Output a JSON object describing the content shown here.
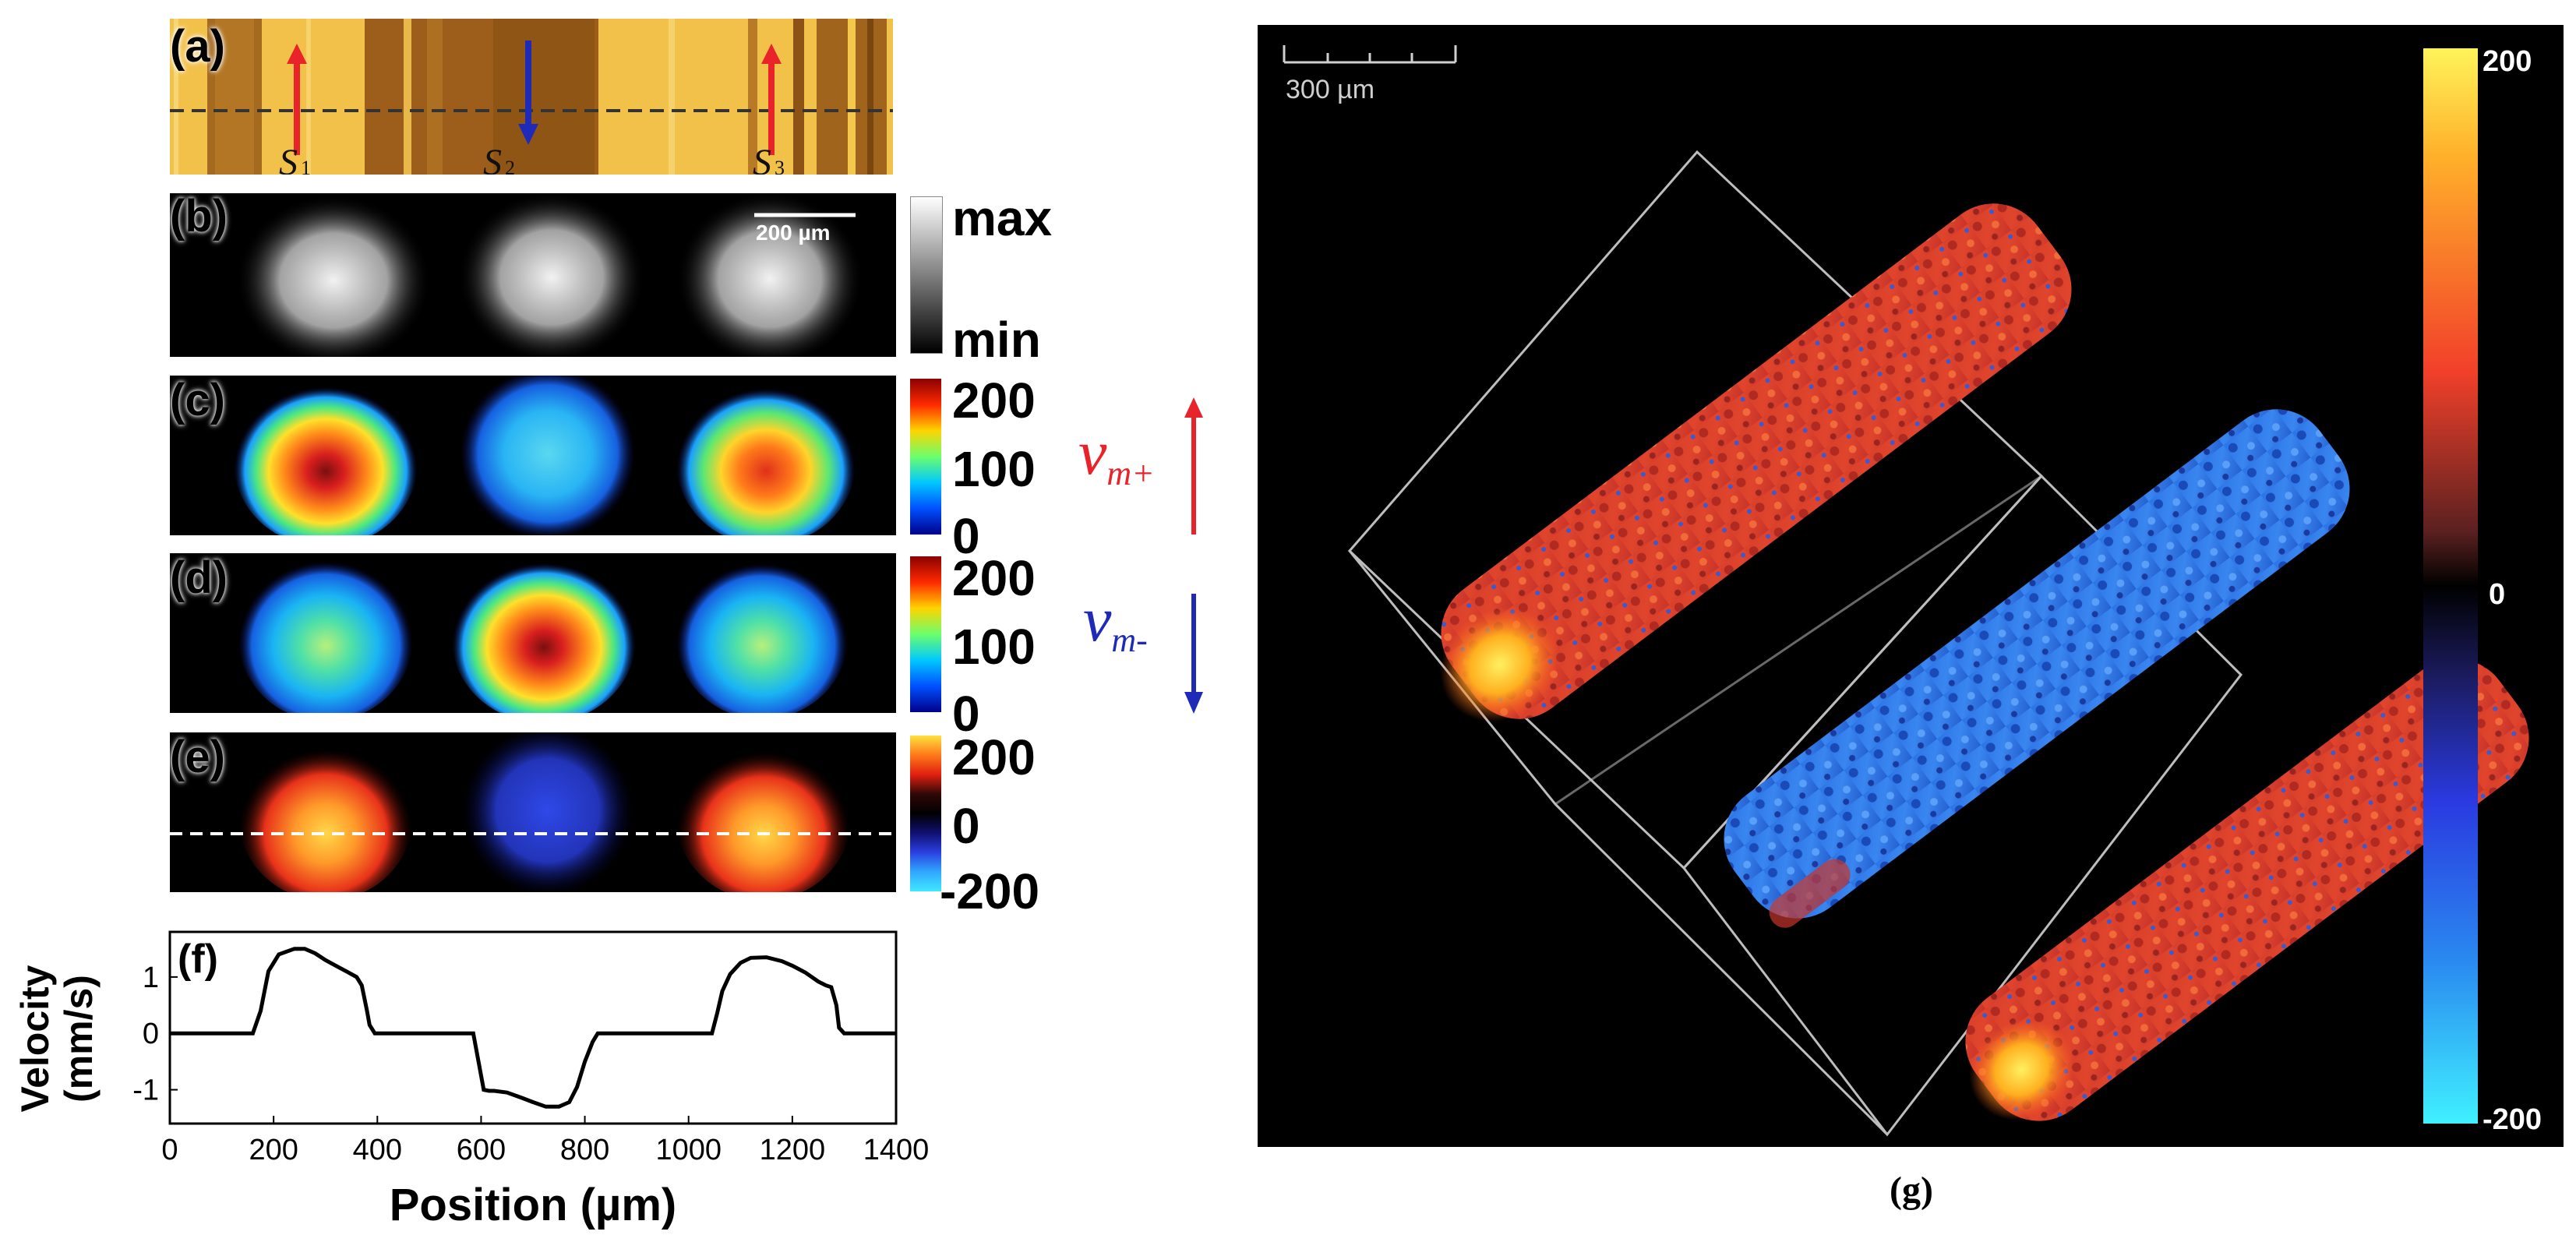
{
  "panel_labels": {
    "a": "(a)",
    "b": "(b)",
    "c": "(c)",
    "d": "(d)",
    "e": "(e)",
    "f": "(f)"
  },
  "panel_a": {
    "s1": "S",
    "s1_sub": "1",
    "s2": "S",
    "s2_sub": "2",
    "s3": "S",
    "s3_sub": "3",
    "colors": {
      "up_arrow": "#e8232a",
      "down_arrow": "#1f2bb8",
      "dash": "#333333"
    }
  },
  "panel_b": {
    "scale_bar": "200 µm",
    "cb_max": "max",
    "cb_min": "min"
  },
  "panel_c": {
    "ticks": [
      "200",
      "100",
      "0"
    ],
    "symbol": "v",
    "subscript": "m+",
    "color": "#e8232a"
  },
  "panel_d": {
    "ticks": [
      "200",
      "100",
      "0"
    ],
    "symbol": "v",
    "subscript": "m-",
    "color": "#1f2bb8"
  },
  "panel_e": {
    "ticks": [
      "200",
      "0",
      "-200"
    ]
  },
  "panel_g": {
    "caption": "(g)",
    "scale_bar": "300 µm",
    "cb_ticks": [
      "200",
      "0",
      "-200"
    ]
  },
  "chart_data": {
    "type": "line",
    "title": "",
    "xlabel": "Position (µm)",
    "ylabel_line1": "Velocity",
    "ylabel_line2": "(mm/s)",
    "xlim": [
      0,
      1400
    ],
    "ylim": [
      -1.6,
      1.8
    ],
    "xticks": [
      "0",
      "200",
      "400",
      "600",
      "800",
      "1000",
      "1200",
      "1400"
    ],
    "yticks": [
      "1",
      "0",
      "-1"
    ],
    "series": [
      {
        "name": "velocity",
        "x": [
          0,
          160,
          175,
          190,
          210,
          240,
          260,
          280,
          300,
          320,
          340,
          360,
          370,
          380,
          385,
          395,
          585,
          595,
          605,
          615,
          625,
          650,
          680,
          700,
          725,
          750,
          770,
          785,
          800,
          815,
          825,
          835,
          1045,
          1055,
          1065,
          1080,
          1100,
          1120,
          1150,
          1180,
          1200,
          1225,
          1250,
          1265,
          1275,
          1285,
          1290,
          1300,
          1400
        ],
        "y": [
          0,
          0,
          0.4,
          1.1,
          1.4,
          1.5,
          1.5,
          1.42,
          1.3,
          1.2,
          1.1,
          1.0,
          0.85,
          0.4,
          0.15,
          0,
          0,
          -0.5,
          -1.0,
          -1.02,
          -1.02,
          -1.05,
          -1.15,
          -1.22,
          -1.3,
          -1.3,
          -1.22,
          -0.95,
          -0.5,
          -0.15,
          0,
          0,
          0,
          0.35,
          0.75,
          1.05,
          1.25,
          1.34,
          1.35,
          1.28,
          1.2,
          1.08,
          0.92,
          0.85,
          0.82,
          0.5,
          0.1,
          0,
          0
        ]
      }
    ]
  }
}
